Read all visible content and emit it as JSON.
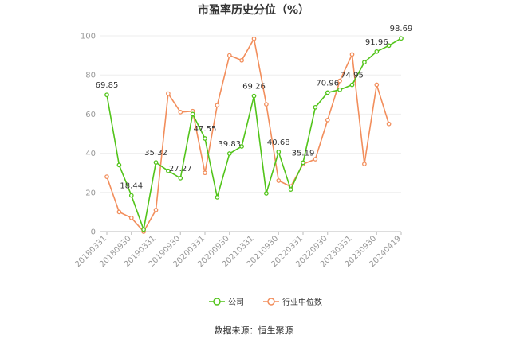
{
  "chart_data": {
    "type": "line",
    "title": "市盈率历史分位（%）",
    "categories": [
      "20180331",
      "20180630",
      "20180930",
      "20181231",
      "20190331",
      "20190630",
      "20190930",
      "20191231",
      "20200331",
      "20200630",
      "20200930",
      "20201231",
      "20210331",
      "20210630",
      "20210930",
      "20211231",
      "20220331",
      "20220630",
      "20220930",
      "20221231",
      "20230331",
      "20230630",
      "20230930",
      "20231231",
      "20240419"
    ],
    "x_tick_labels": [
      "20180331",
      "20180930",
      "20190331",
      "20190930",
      "20200331",
      "20200930",
      "20210331",
      "20210930",
      "20220331",
      "20220930",
      "20230331",
      "20230930",
      "20240419"
    ],
    "y_ticks": [
      0,
      20,
      40,
      60,
      80,
      100
    ],
    "ylim": [
      0,
      100
    ],
    "grid": true,
    "legend_position": "bottom",
    "series": [
      {
        "name": "公司",
        "color": "#52c41a",
        "values": [
          69.85,
          34,
          18.44,
          1,
          35.32,
          31,
          27.27,
          60,
          47.55,
          17.5,
          39.83,
          43.5,
          69.26,
          19.5,
          40.68,
          21.5,
          35.19,
          63.5,
          70.96,
          72.5,
          74.95,
          86.5,
          91.96,
          95,
          98.69
        ],
        "labels": [
          "69.85",
          "",
          "18.44",
          "",
          "35.32",
          "",
          "27.27",
          "",
          "47.55",
          "",
          "39.83",
          "",
          "69.26",
          "",
          "40.68",
          "",
          "35.19",
          "",
          "70.96",
          "",
          "74.95",
          "",
          "91.96",
          "",
          "98.69"
        ]
      },
      {
        "name": "行业中位数",
        "color": "#f28e5c",
        "values": [
          28,
          10,
          7,
          0,
          11,
          70.5,
          61,
          61.5,
          30,
          64.5,
          90,
          87.5,
          98.5,
          65,
          26,
          23,
          34.5,
          37,
          57,
          77,
          90.5,
          34.5,
          75,
          55,
          null
        ]
      }
    ],
    "source": "数据来源：恒生聚源"
  }
}
